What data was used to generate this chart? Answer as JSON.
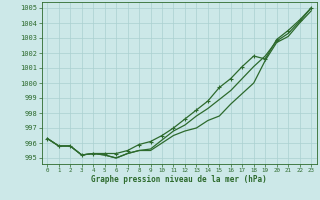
{
  "x": [
    0,
    1,
    2,
    3,
    4,
    5,
    6,
    7,
    8,
    9,
    10,
    11,
    12,
    13,
    14,
    15,
    16,
    17,
    18,
    19,
    20,
    21,
    22,
    23
  ],
  "line1": [
    996.3,
    995.8,
    995.8,
    995.2,
    995.3,
    995.2,
    995.0,
    995.3,
    995.5,
    995.5,
    996.0,
    996.5,
    996.8,
    997.0,
    997.5,
    997.8,
    998.6,
    999.3,
    1000.0,
    1001.5,
    1002.7,
    1003.1,
    1004.0,
    1004.8
  ],
  "line2": [
    996.3,
    995.8,
    995.8,
    995.2,
    995.3,
    995.2,
    995.0,
    995.3,
    995.5,
    995.6,
    996.2,
    996.8,
    997.2,
    997.8,
    998.3,
    998.9,
    999.5,
    1000.3,
    1001.1,
    1001.8,
    1002.8,
    1003.3,
    1004.1,
    1005.0
  ],
  "line3": [
    996.3,
    995.8,
    995.8,
    995.2,
    995.3,
    995.3,
    995.3,
    995.5,
    995.9,
    996.1,
    996.5,
    997.0,
    997.6,
    998.2,
    998.8,
    999.7,
    1000.3,
    1001.1,
    1001.8,
    1001.6,
    1002.9,
    1003.5,
    1004.2,
    1005.0
  ],
  "ylim": [
    994.6,
    1005.4
  ],
  "yticks": [
    995,
    996,
    997,
    998,
    999,
    1000,
    1001,
    1002,
    1003,
    1004,
    1005
  ],
  "xlim": [
    -0.5,
    23.5
  ],
  "xticks": [
    0,
    1,
    2,
    3,
    4,
    5,
    6,
    7,
    8,
    9,
    10,
    11,
    12,
    13,
    14,
    15,
    16,
    17,
    18,
    19,
    20,
    21,
    22,
    23
  ],
  "xlabel": "Graphe pression niveau de la mer (hPa)",
  "line_color": "#2d6a2d",
  "bg_color": "#cce8e8",
  "grid_color": "#aad0d0",
  "marker": "+"
}
